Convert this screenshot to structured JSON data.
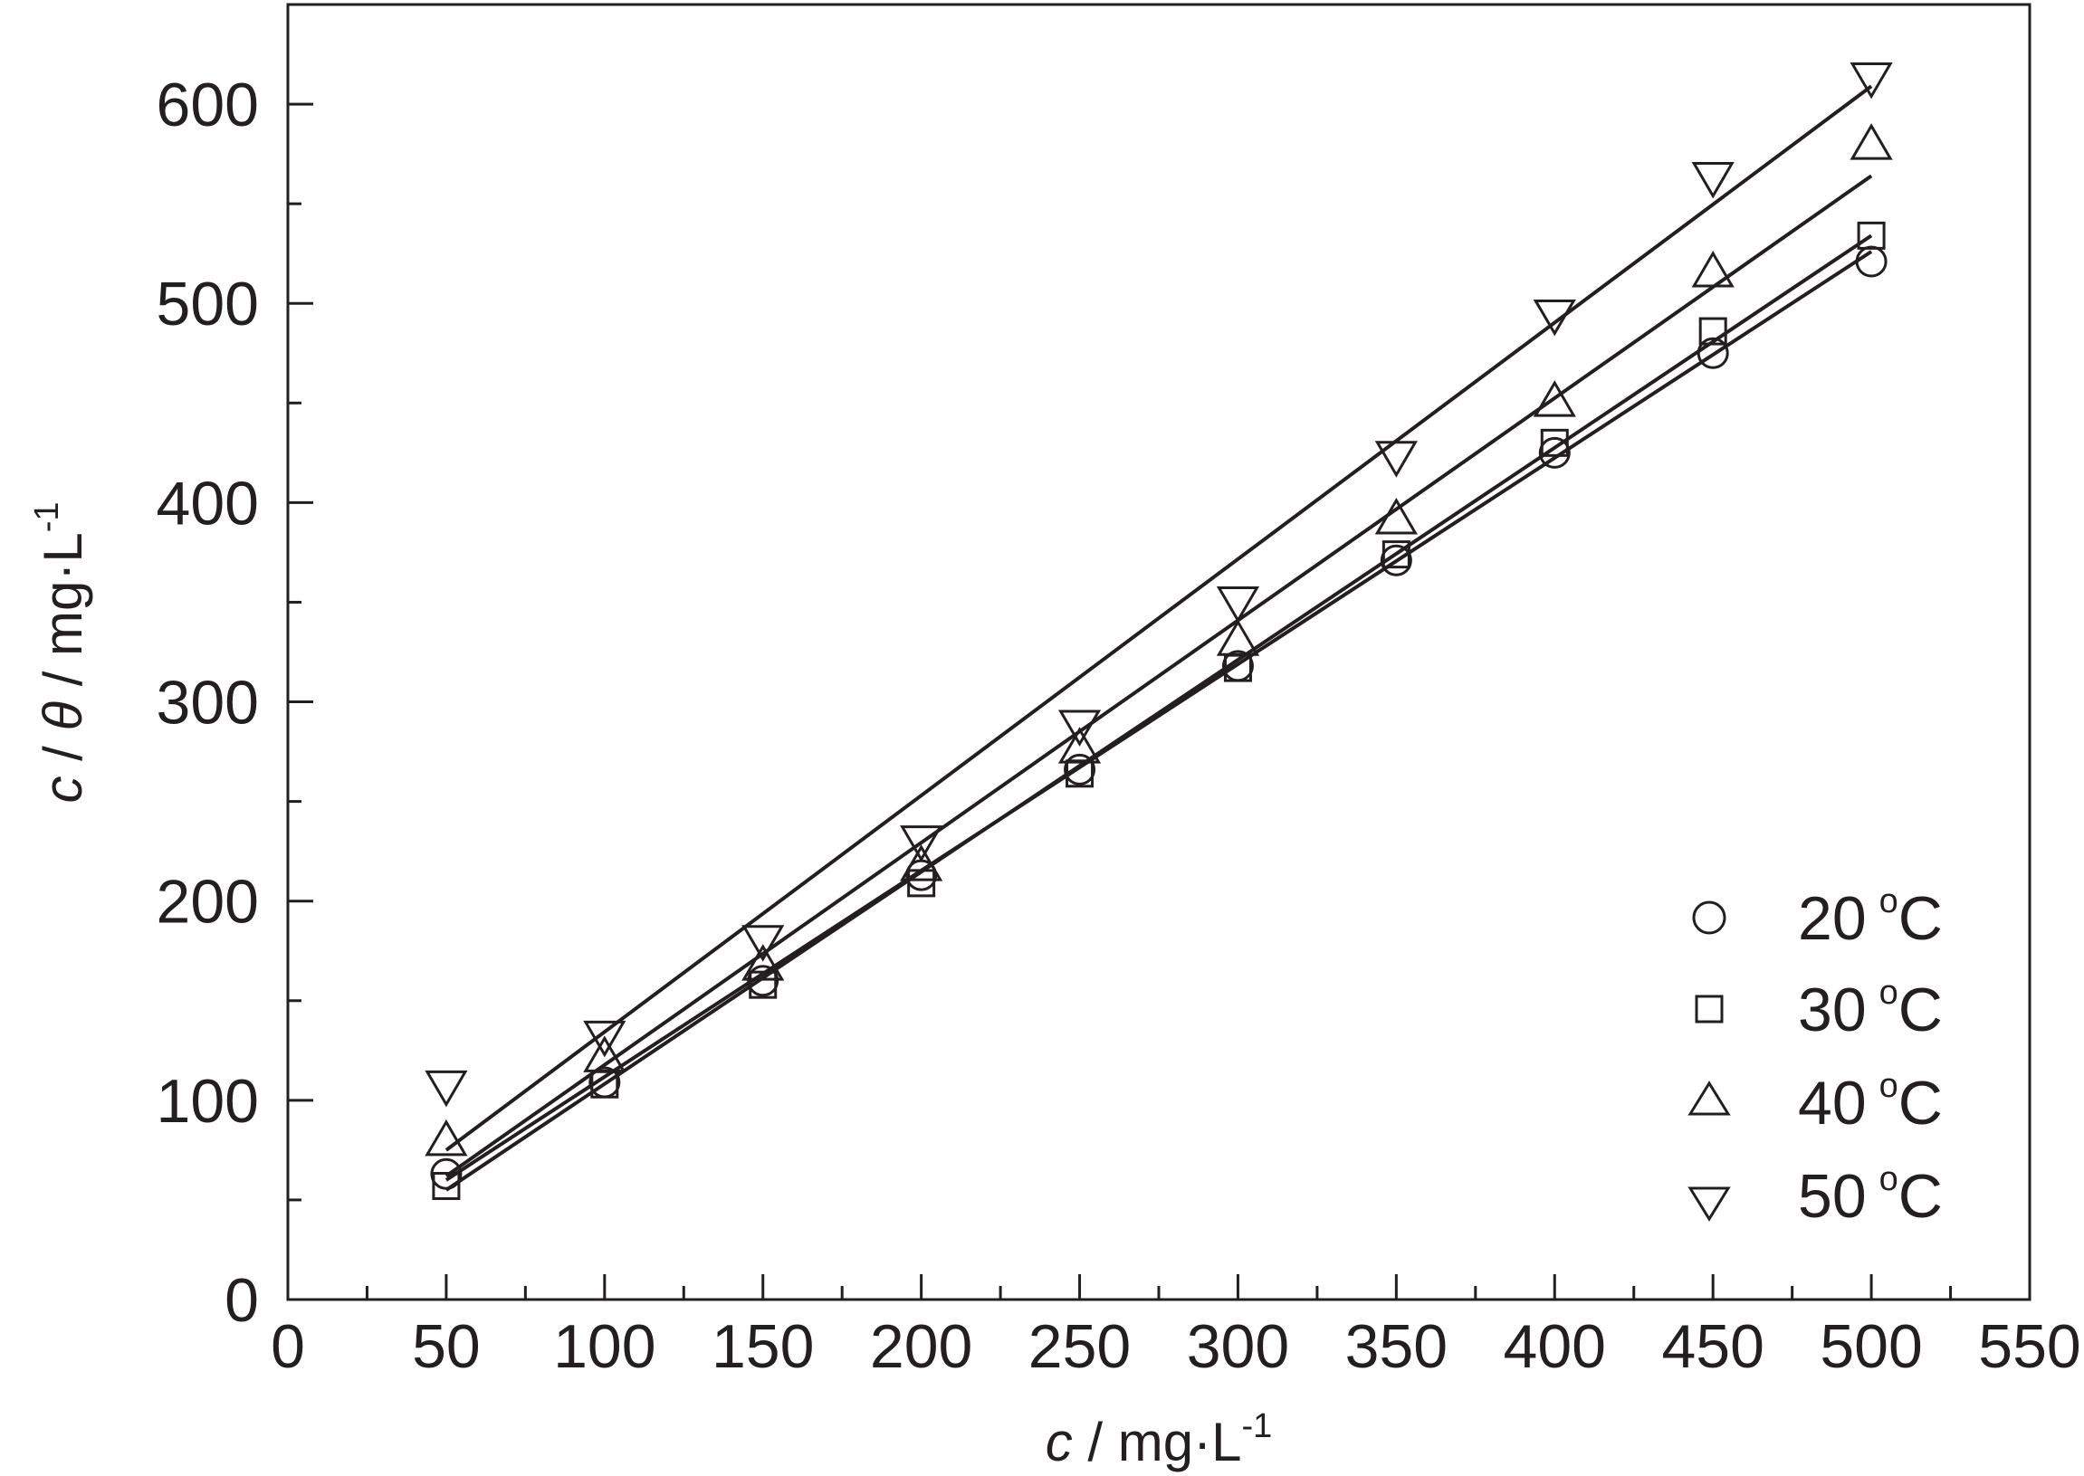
{
  "chart_data": {
    "type": "scatter",
    "xlabel": {
      "var": "c",
      "sep": " / ",
      "unit": "mg·L",
      "exp": "-1"
    },
    "ylabel": {
      "var1": "c",
      "sep1": " / ",
      "var2": "θ",
      "sep2": " / ",
      "unit": "mg·L",
      "exp": "-1"
    },
    "xlim": [
      0,
      550
    ],
    "ylim": [
      0,
      650
    ],
    "x_ticks": [
      0,
      50,
      100,
      150,
      200,
      250,
      300,
      350,
      400,
      450,
      500,
      550
    ],
    "y_ticks": [
      0,
      100,
      200,
      300,
      400,
      500,
      600
    ],
    "grid": false,
    "legend_position": "bottom-right",
    "x": [
      50,
      100,
      150,
      200,
      250,
      300,
      350,
      400,
      450,
      500
    ],
    "series": [
      {
        "name": "20 °C",
        "label_num": "20",
        "label_sup": "o",
        "label_unit": "C",
        "marker": "circle",
        "y": [
          63,
          109,
          160,
          213,
          266,
          318,
          371,
          425,
          475,
          521
        ],
        "fit": [
          [
            50,
            60
          ],
          [
            500,
            526
          ]
        ]
      },
      {
        "name": "30 °C",
        "label_num": "30",
        "label_sup": "o",
        "label_unit": "C",
        "marker": "square",
        "y": [
          57,
          108,
          158,
          209,
          264,
          317,
          374,
          430,
          486,
          534
        ],
        "fit": [
          [
            50,
            55
          ],
          [
            500,
            534
          ]
        ]
      },
      {
        "name": "40 °C",
        "label_num": "40",
        "label_sup": "o",
        "label_unit": "C",
        "marker": "triangle-up",
        "y": [
          80,
          122,
          168,
          218,
          277,
          331,
          392,
          451,
          516,
          580
        ],
        "fit": [
          [
            50,
            62
          ],
          [
            500,
            564
          ]
        ]
      },
      {
        "name": "50 °C",
        "label_num": "50",
        "label_sup": "o",
        "label_unit": "C",
        "marker": "triangle-down",
        "y": [
          107,
          132,
          180,
          230,
          288,
          350,
          423,
          494,
          563,
          613
        ],
        "fit": [
          [
            50,
            75
          ],
          [
            500,
            609
          ]
        ]
      }
    ]
  },
  "colors": {
    "ink": "#231f20",
    "background": "#ffffff"
  }
}
